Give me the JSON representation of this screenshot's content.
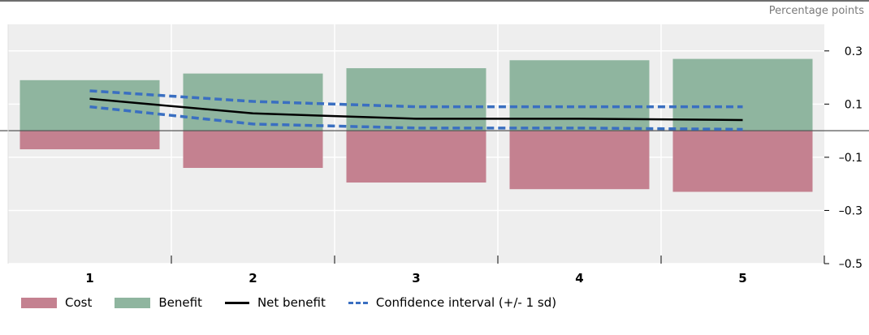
{
  "unit_label": "Percentage points",
  "colors": {
    "cost": "#c48190",
    "benefit": "#8fb59f",
    "net": "#000000",
    "ci": "#3a6fc1",
    "plot_bg": "#eeeeee",
    "grid": "#ffffff"
  },
  "legend": {
    "cost": "Cost",
    "benefit": "Benefit",
    "net": "Net benefit",
    "ci": "Confidence interval (+/- 1 sd)"
  },
  "chart_data": {
    "type": "bar",
    "categories": [
      "1",
      "2",
      "3",
      "4",
      "5"
    ],
    "ylim": [
      -0.5,
      0.4
    ],
    "yticks": [
      0.3,
      0.1,
      -0.1,
      -0.3,
      -0.5
    ],
    "ytick_labels": [
      "0.3",
      "0.1",
      "–0.1",
      "–0.3",
      "–0.5"
    ],
    "series": [
      {
        "name": "Cost",
        "kind": "bar",
        "values": [
          -0.07,
          -0.14,
          -0.195,
          -0.22,
          -0.23
        ]
      },
      {
        "name": "Benefit",
        "kind": "bar",
        "values": [
          0.19,
          0.215,
          0.235,
          0.265,
          0.27
        ]
      },
      {
        "name": "Net benefit",
        "kind": "line",
        "values": [
          0.12,
          0.065,
          0.045,
          0.045,
          0.04
        ]
      },
      {
        "name": "Confidence interval (+/- 1 sd)",
        "kind": "band",
        "upper": [
          0.15,
          0.11,
          0.09,
          0.09,
          0.09
        ],
        "lower": [
          0.09,
          0.025,
          0.01,
          0.01,
          0.005
        ]
      }
    ]
  }
}
